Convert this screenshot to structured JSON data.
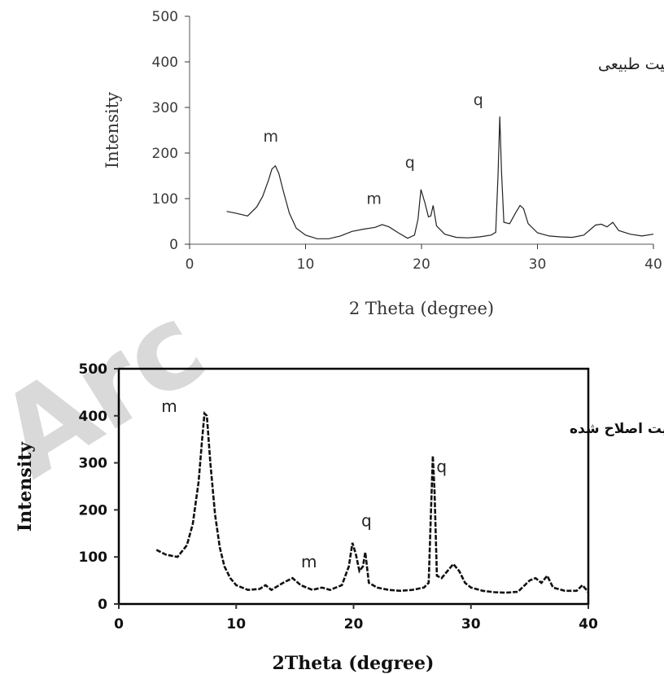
{
  "watermark": "Arc",
  "chart_data": [
    {
      "type": "line",
      "title": "",
      "xlabel": "2 Theta (degree)",
      "ylabel": "Intensity",
      "xlim": [
        0,
        40
      ],
      "ylim": [
        0,
        500
      ],
      "x_ticks": [
        "0",
        "10",
        "20",
        "30",
        "40"
      ],
      "y_ticks": [
        "0",
        "100",
        "200",
        "300",
        "400",
        "500"
      ],
      "grid": false,
      "box": false,
      "annotation": "مونت‌موریلونیت طبیعی",
      "line_color": "#222222",
      "series": [
        {
          "x": [
            3.2,
            4,
            5,
            5.8,
            6.3,
            6.8,
            7.1,
            7.4,
            7.7,
            8.1,
            8.6,
            9.2,
            10,
            11,
            12,
            13,
            14,
            15,
            16,
            16.6,
            17.2,
            18,
            18.8,
            19.4,
            19.7,
            19.95,
            20.3,
            20.6,
            20.8,
            21,
            21.3,
            22,
            23,
            24,
            25,
            26,
            26.4,
            26.6,
            26.75,
            26.9,
            27.1,
            27.6,
            28.1,
            28.5,
            28.8,
            29.2,
            30,
            31,
            32,
            33,
            34,
            35,
            35.5,
            36,
            36.5,
            37,
            38,
            39,
            40
          ],
          "y": [
            72,
            68,
            62,
            82,
            105,
            140,
            165,
            172,
            155,
            115,
            68,
            35,
            20,
            12,
            12,
            18,
            28,
            33,
            37,
            43,
            38,
            25,
            13,
            20,
            55,
            120,
            90,
            60,
            62,
            85,
            40,
            22,
            15,
            14,
            16,
            20,
            26,
            150,
            280,
            160,
            48,
            45,
            68,
            85,
            78,
            45,
            25,
            18,
            16,
            15,
            20,
            42,
            44,
            38,
            48,
            30,
            22,
            18,
            22
          ]
        }
      ],
      "peak_labels": [
        {
          "text": "m",
          "x": 7.0,
          "y": 225
        },
        {
          "text": "m",
          "x": 15.9,
          "y": 88
        },
        {
          "text": "q",
          "x": 19.0,
          "y": 168
        },
        {
          "text": "q",
          "x": 24.9,
          "y": 305
        }
      ]
    },
    {
      "type": "line",
      "title": "",
      "xlabel": "2Theta (degree)",
      "ylabel": "Intensity",
      "xlim": [
        0,
        40
      ],
      "ylim": [
        0,
        500
      ],
      "x_ticks": [
        "0",
        "10",
        "20",
        "30",
        "40"
      ],
      "y_ticks": [
        "0",
        "100",
        "200",
        "300",
        "400",
        "500"
      ],
      "grid": false,
      "box": true,
      "annotation": "مونت‌موریلونیت اصلاح شده",
      "line_color": "#111111",
      "series": [
        {
          "x": [
            3.2,
            4,
            5,
            5.8,
            6.3,
            6.8,
            7.1,
            7.3,
            7.5,
            7.8,
            8.2,
            8.6,
            9,
            9.5,
            10,
            11,
            12,
            12.5,
            13,
            14,
            14.8,
            15.5,
            16.5,
            17.3,
            18,
            19,
            19.6,
            19.9,
            20.2,
            20.5,
            20.8,
            21,
            21.3,
            22,
            23,
            24,
            25,
            26,
            26.4,
            26.6,
            26.75,
            26.9,
            27.1,
            27.5,
            28,
            28.5,
            29,
            29.5,
            30,
            31,
            32,
            33,
            34,
            35,
            35.5,
            36,
            36.5,
            37,
            38,
            39,
            39.5,
            40
          ],
          "y": [
            115,
            105,
            100,
            125,
            170,
            260,
            350,
            405,
            400,
            300,
            190,
            120,
            80,
            55,
            40,
            30,
            32,
            40,
            30,
            45,
            55,
            40,
            30,
            35,
            30,
            40,
            80,
            130,
            105,
            70,
            80,
            110,
            45,
            35,
            30,
            28,
            30,
            35,
            45,
            200,
            315,
            240,
            60,
            55,
            70,
            85,
            70,
            45,
            35,
            28,
            25,
            24,
            26,
            50,
            55,
            45,
            60,
            35,
            28,
            28,
            40,
            25
          ]
        }
      ],
      "peak_labels": [
        {
          "text": "m",
          "x": 4.3,
          "y": 408
        },
        {
          "text": "m",
          "x": 16.2,
          "y": 78
        },
        {
          "text": "q",
          "x": 21.1,
          "y": 165
        },
        {
          "text": "q",
          "x": 27.5,
          "y": 280
        }
      ]
    }
  ]
}
